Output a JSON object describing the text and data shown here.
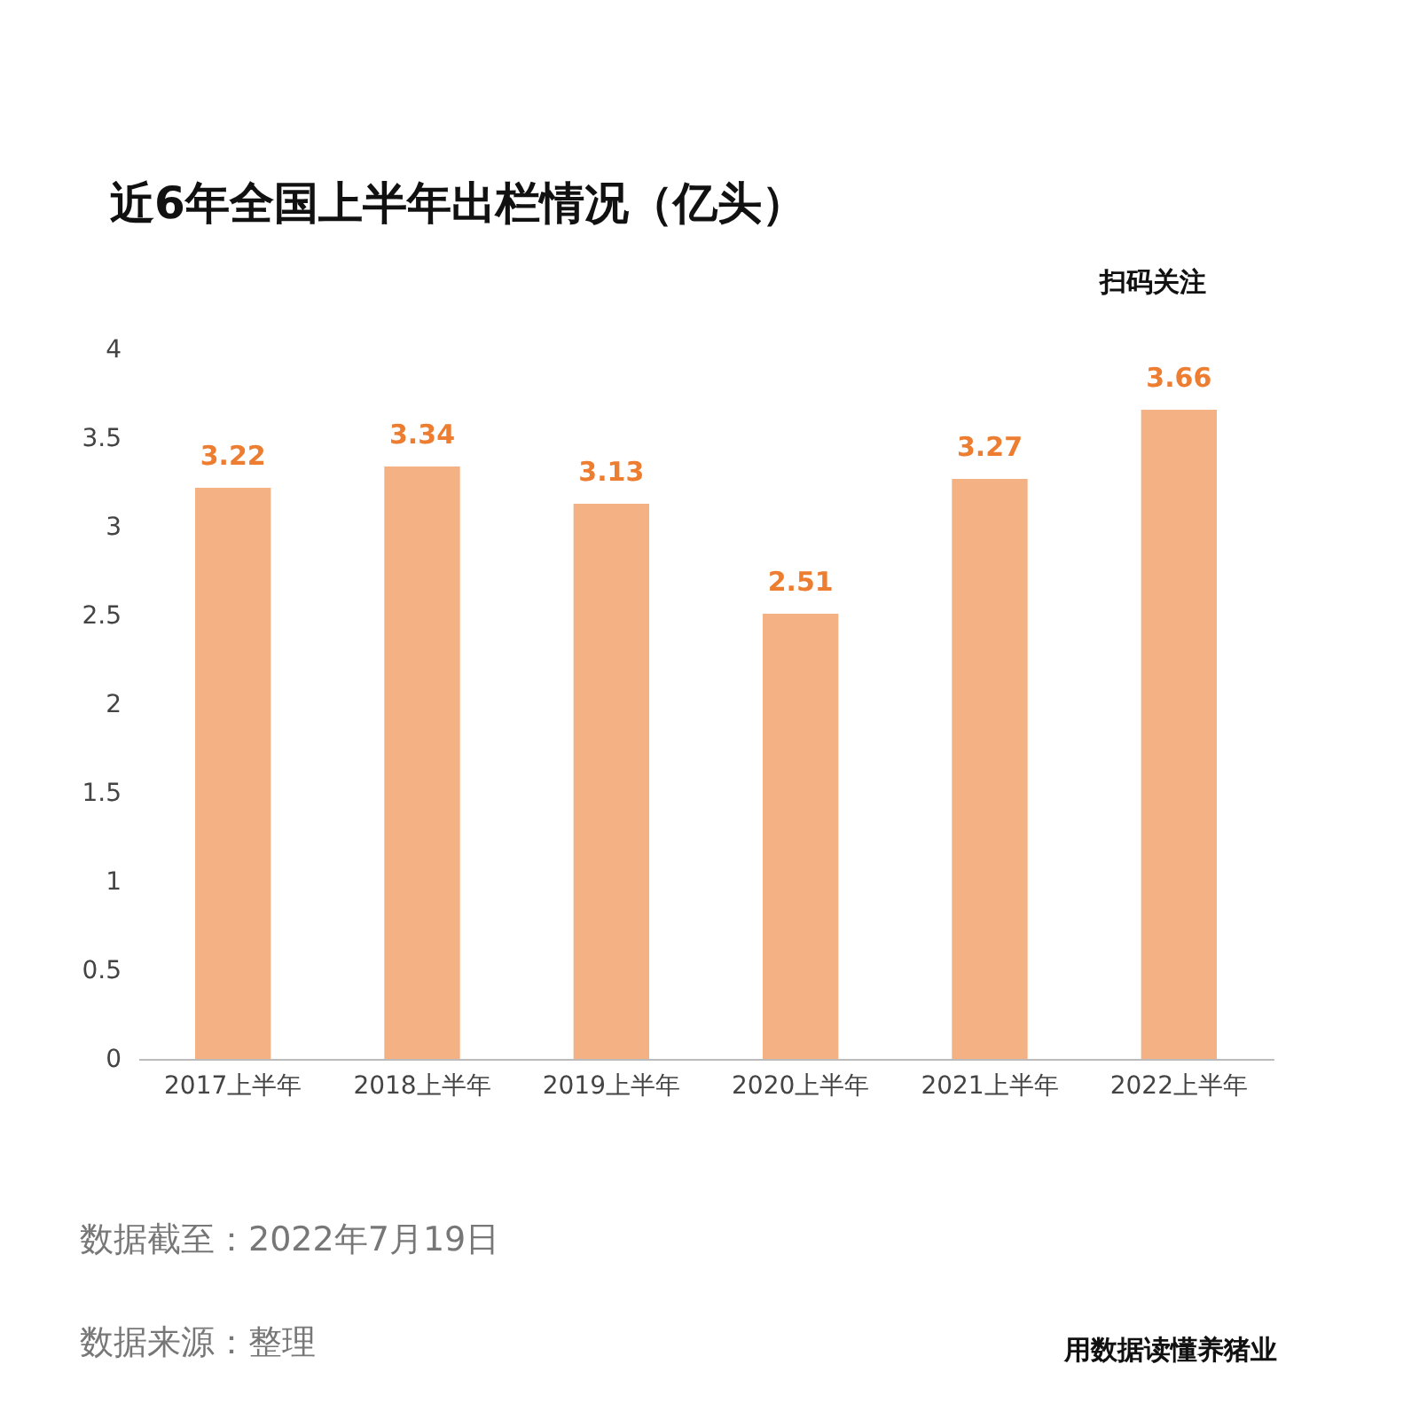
{
  "chart_data": {
    "type": "bar",
    "title": "近6年全国上半年出栏情况（亿头）",
    "categories": [
      "2017上半年",
      "2018上半年",
      "2019上半年",
      "2020上半年",
      "2021上半年",
      "2022上半年"
    ],
    "values": [
      3.22,
      3.34,
      3.13,
      2.51,
      3.27,
      3.66
    ],
    "color": "#f4b183",
    "ylim": [
      0,
      4
    ],
    "yticks": [
      0,
      0.5,
      1,
      1.5,
      2,
      2.5,
      3,
      3.5,
      4
    ],
    "data_labels": true,
    "annotations": [
      "扫码关注",
      "数据截至：2022年7月19日",
      "数据来源：整理",
      "用数据读懂养猪业"
    ]
  }
}
